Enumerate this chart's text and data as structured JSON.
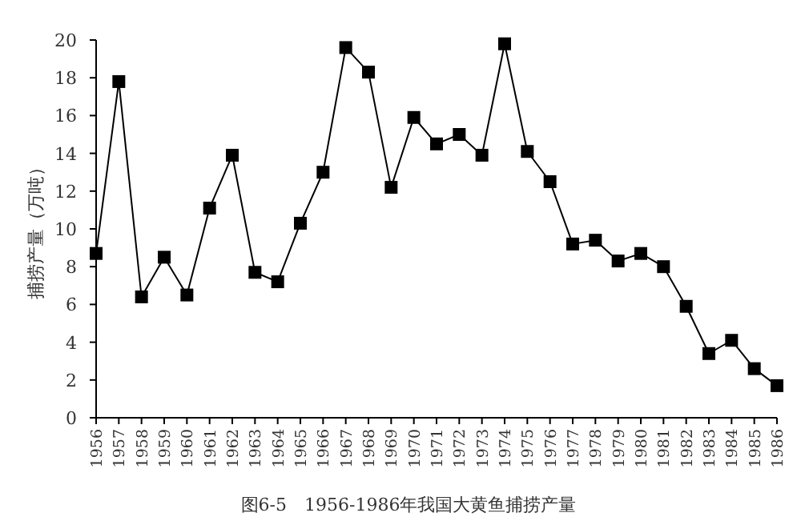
{
  "chart_data": {
    "type": "line",
    "title": "图6-5　1956-1986年我国大黄鱼捕捞产量",
    "ylabel": "捕捞产量（万吨）",
    "categories": [
      "1956",
      "1957",
      "1958",
      "1959",
      "1960",
      "1961",
      "1962",
      "1963",
      "1964",
      "1965",
      "1966",
      "1967",
      "1968",
      "1969",
      "1970",
      "1971",
      "1972",
      "1973",
      "1974",
      "1975",
      "1976",
      "1977",
      "1978",
      "1979",
      "1980",
      "1981",
      "1982",
      "1983",
      "1984",
      "1985",
      "1986"
    ],
    "series": [
      {
        "color": "#000000",
        "values": [
          8.7,
          17.8,
          6.4,
          8.5,
          6.5,
          11.1,
          13.9,
          7.7,
          7.2,
          10.3,
          13.0,
          19.6,
          18.3,
          12.2,
          15.9,
          14.5,
          15.0,
          13.9,
          19.8,
          14.1,
          12.5,
          9.2,
          9.4,
          8.3,
          8.7,
          8.0,
          5.9,
          3.4,
          4.1,
          2.6,
          1.7
        ]
      }
    ],
    "ylim": [
      0,
      20
    ],
    "yticks": [
      0,
      2,
      4,
      6,
      8,
      10,
      12,
      14,
      16,
      18,
      20
    ],
    "marker": "square",
    "line_style": "solid",
    "grid": false
  }
}
